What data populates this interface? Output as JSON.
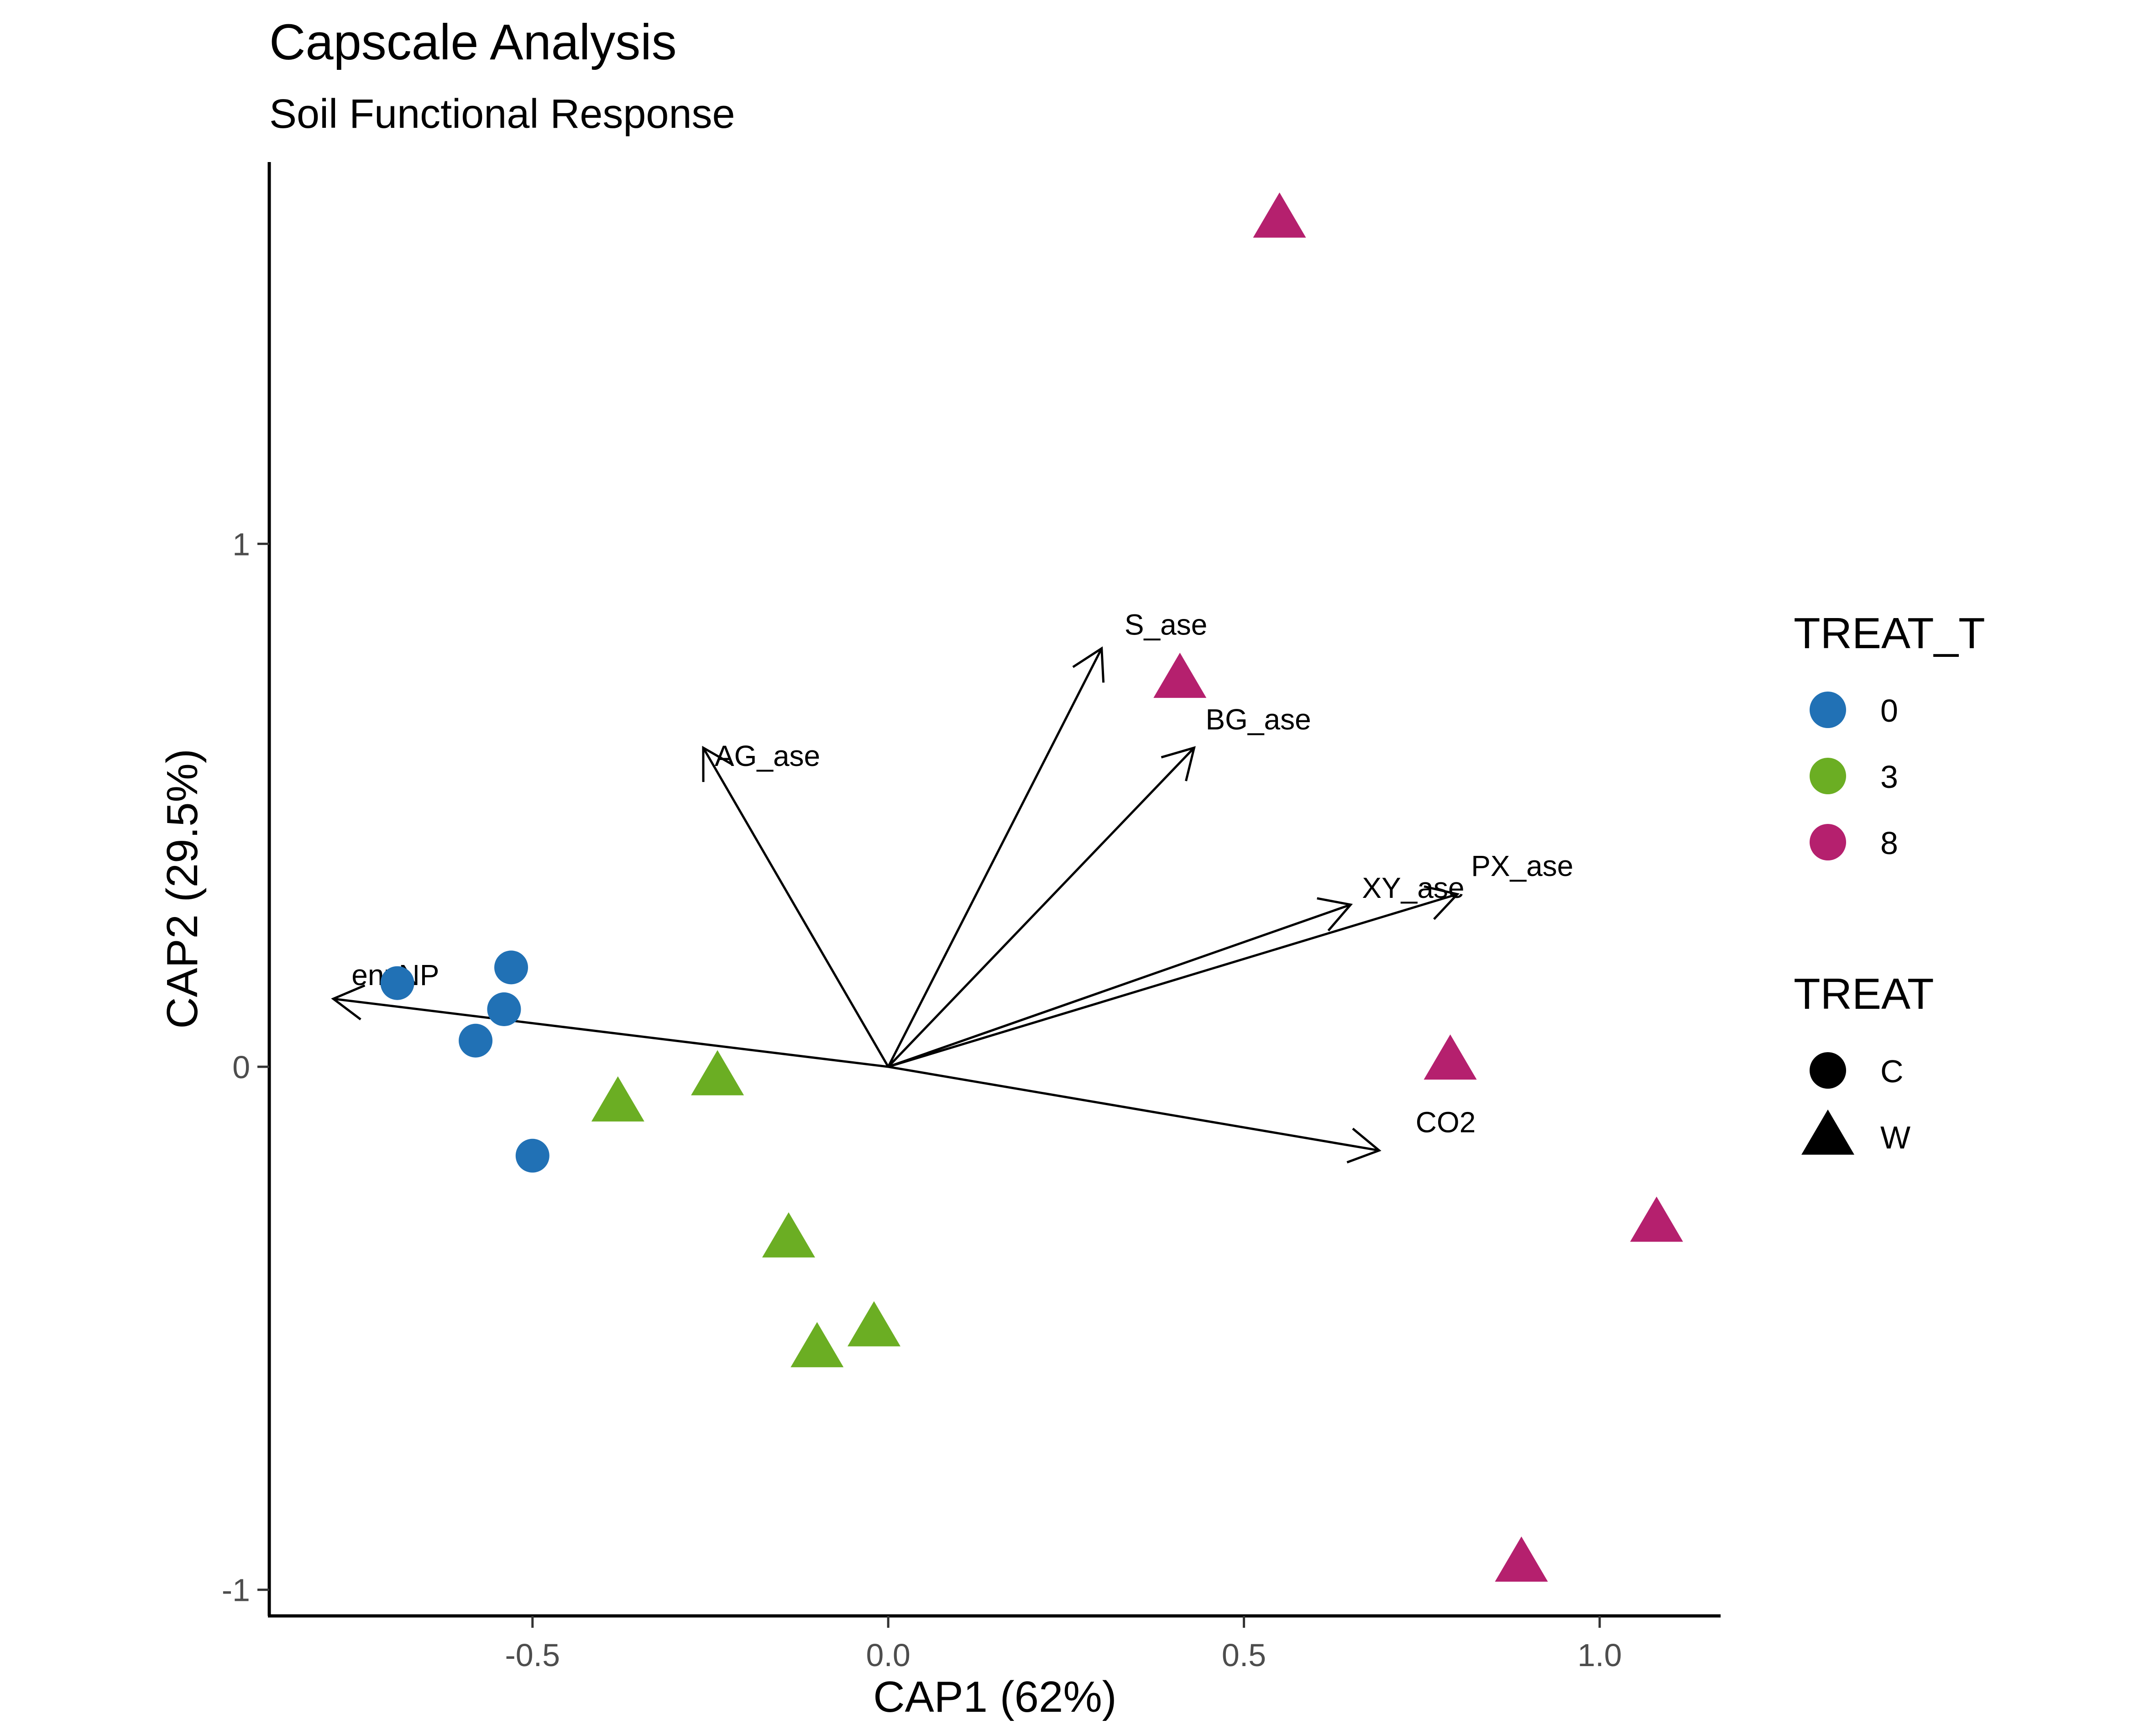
{
  "chart_data": {
    "type": "scatter",
    "title": "Capscale Analysis",
    "subtitle": "Soil Functional Response",
    "xlabel": "CAP1 (62%)",
    "ylabel": "CAP2 (29.5%)",
    "xlim": [
      -0.87,
      1.17
    ],
    "ylim": [
      -1.05,
      1.73
    ],
    "xticks": [
      -0.5,
      0.0,
      0.5,
      1.0
    ],
    "xtick_labels": [
      "-0.5",
      "0.0",
      "0.5",
      "1.0"
    ],
    "yticks": [
      -1,
      0,
      1
    ],
    "ytick_labels": [
      "-1",
      "0",
      "1"
    ],
    "grid": false,
    "legend_placement": "right",
    "colors": {
      "0": "#2171B5",
      "3": "#6BAE23",
      "8": "#B5206E"
    },
    "points": [
      {
        "x": -0.69,
        "y": 0.16,
        "treat_t": "0",
        "treat": "C"
      },
      {
        "x": -0.53,
        "y": 0.19,
        "treat_t": "0",
        "treat": "C"
      },
      {
        "x": -0.54,
        "y": 0.11,
        "treat_t": "0",
        "treat": "C"
      },
      {
        "x": -0.58,
        "y": 0.05,
        "treat_t": "0",
        "treat": "C"
      },
      {
        "x": -0.5,
        "y": -0.17,
        "treat_t": "0",
        "treat": "C"
      },
      {
        "x": -0.38,
        "y": -0.07,
        "treat_t": "3",
        "treat": "W"
      },
      {
        "x": -0.24,
        "y": -0.02,
        "treat_t": "3",
        "treat": "W"
      },
      {
        "x": -0.14,
        "y": -0.33,
        "treat_t": "3",
        "treat": "W"
      },
      {
        "x": -0.02,
        "y": -0.5,
        "treat_t": "3",
        "treat": "W"
      },
      {
        "x": -0.1,
        "y": -0.54,
        "treat_t": "3",
        "treat": "W"
      },
      {
        "x": 0.55,
        "y": 1.62,
        "treat_t": "8",
        "treat": "W"
      },
      {
        "x": 0.41,
        "y": 0.74,
        "treat_t": "8",
        "treat": "W"
      },
      {
        "x": 0.79,
        "y": 0.01,
        "treat_t": "8",
        "treat": "W"
      },
      {
        "x": 1.08,
        "y": -0.3,
        "treat_t": "8",
        "treat": "W"
      },
      {
        "x": 0.89,
        "y": -0.95,
        "treat_t": "8",
        "treat": "W"
      }
    ],
    "vectors": [
      {
        "name": "S_ase",
        "x": 0.3,
        "y": 0.8
      },
      {
        "name": "AG_ase",
        "x": -0.26,
        "y": 0.61
      },
      {
        "name": "BG_ase",
        "x": 0.43,
        "y": 0.61
      },
      {
        "name": "XY_ase",
        "x": 0.65,
        "y": 0.31
      },
      {
        "name": "PX_ase",
        "x": 0.8,
        "y": 0.33
      },
      {
        "name": "enzNP",
        "x": -0.78,
        "y": 0.13
      },
      {
        "name": "CO2",
        "x": 0.69,
        "y": -0.16
      }
    ],
    "legends": [
      {
        "title": "TREAT_T",
        "entries": [
          {
            "label": "0",
            "color": "#2171B5",
            "shape": "circle"
          },
          {
            "label": "3",
            "color": "#6BAE23",
            "shape": "circle"
          },
          {
            "label": "8",
            "color": "#B5206E",
            "shape": "circle"
          }
        ]
      },
      {
        "title": "TREAT",
        "entries": [
          {
            "label": "C",
            "color": "#000000",
            "shape": "circle"
          },
          {
            "label": "W",
            "color": "#000000",
            "shape": "triangle"
          }
        ]
      }
    ]
  }
}
